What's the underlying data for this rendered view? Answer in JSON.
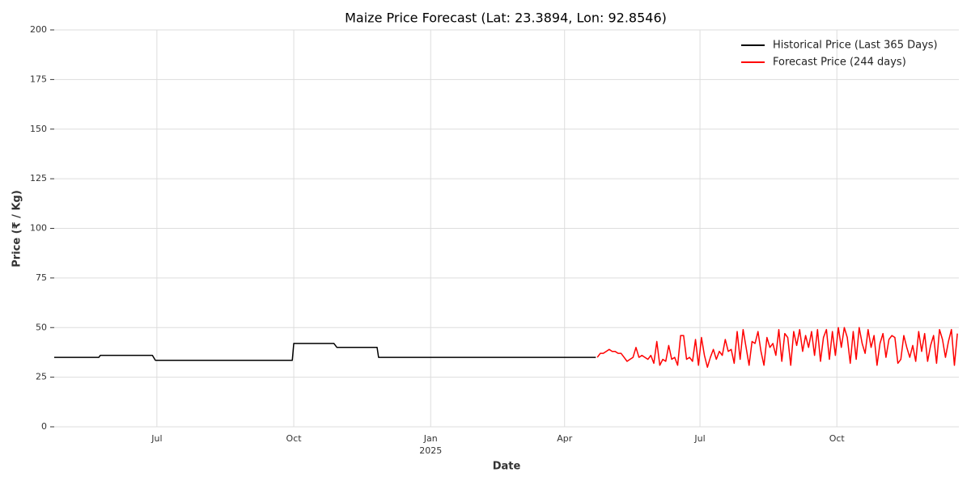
{
  "chart_data": {
    "type": "line",
    "title": "Maize Price Forecast (Lat: 23.3894, Lon: 92.8546)",
    "xlabel": "Date",
    "ylabel": "Price (₹ / Kg)",
    "xlim": [
      0,
      608
    ],
    "xticks": [
      {
        "value": 69,
        "label": "Jul"
      },
      {
        "value": 161,
        "label": "Oct"
      },
      {
        "value": 253,
        "label": "Jan"
      },
      {
        "value": 343,
        "label": "Apr"
      },
      {
        "value": 434,
        "label": "Jul"
      },
      {
        "value": 526,
        "label": "Oct"
      }
    ],
    "x_year_label": {
      "value": 253,
      "label": "2025"
    },
    "ylim": [
      0,
      200
    ],
    "yticks": [
      0,
      25,
      50,
      75,
      100,
      125,
      150,
      175,
      200
    ],
    "grid": true,
    "legend": "upper right",
    "series": [
      {
        "name": "Historical Price (Last 365 Days)",
        "color": "#000000",
        "x": [
          0,
          30,
          31,
          66,
          68,
          160,
          161,
          188,
          190,
          217,
          218,
          364
        ],
        "values": [
          35,
          35,
          36,
          36,
          33.5,
          33.5,
          42,
          42,
          40,
          40,
          35,
          35
        ]
      },
      {
        "name": "Forecast Price (244 days)",
        "color": "#ff0000",
        "x": [
          365,
          367,
          369,
          371,
          373,
          375,
          377,
          379,
          381,
          383,
          385,
          387,
          389,
          391,
          393,
          395,
          397,
          399,
          401,
          403,
          405,
          407,
          409,
          411,
          413,
          415,
          417,
          419,
          421,
          423,
          425,
          427,
          429,
          431,
          433,
          435,
          437,
          439,
          441,
          443,
          445,
          447,
          449,
          451,
          453,
          455,
          457,
          459,
          461,
          463,
          465,
          467,
          469,
          471,
          473,
          475,
          477,
          479,
          481,
          483,
          485,
          487,
          489,
          491,
          493,
          495,
          497,
          499,
          501,
          503,
          505,
          507,
          509,
          511,
          513,
          515,
          517,
          519,
          521,
          523,
          525,
          527,
          529,
          531,
          533,
          535,
          537,
          539,
          541,
          543,
          545,
          547,
          549,
          551,
          553,
          555,
          557,
          559,
          561,
          563,
          565,
          567,
          569,
          571,
          573,
          575,
          577,
          579,
          581,
          583,
          585,
          587,
          589,
          591,
          593,
          595,
          597,
          599,
          601,
          603,
          605,
          607
        ],
        "values": [
          35,
          37,
          37,
          38,
          39,
          38,
          38,
          37,
          37,
          35,
          33,
          34,
          35,
          40,
          35,
          36,
          35,
          34,
          36,
          32,
          43,
          31,
          34,
          33,
          41,
          34,
          35,
          31,
          46,
          46,
          34,
          35,
          33,
          44,
          31,
          45,
          36,
          30,
          35,
          39,
          34,
          38,
          36,
          44,
          38,
          39,
          32,
          48,
          34,
          49,
          40,
          31,
          43,
          42,
          48,
          38,
          31,
          45,
          40,
          42,
          36,
          49,
          33,
          47,
          45,
          31,
          48,
          41,
          49,
          38,
          46,
          40,
          48,
          36,
          49,
          33,
          45,
          49,
          34,
          48,
          36,
          50,
          40,
          50,
          45,
          32,
          48,
          34,
          50,
          42,
          37,
          49,
          40,
          46,
          31,
          42,
          47,
          35,
          44,
          46,
          45,
          32,
          34,
          46,
          40,
          35,
          41,
          33,
          48,
          38,
          47,
          33,
          41,
          46,
          32,
          49,
          44,
          35,
          43,
          49,
          31,
          47
        ]
      }
    ]
  }
}
